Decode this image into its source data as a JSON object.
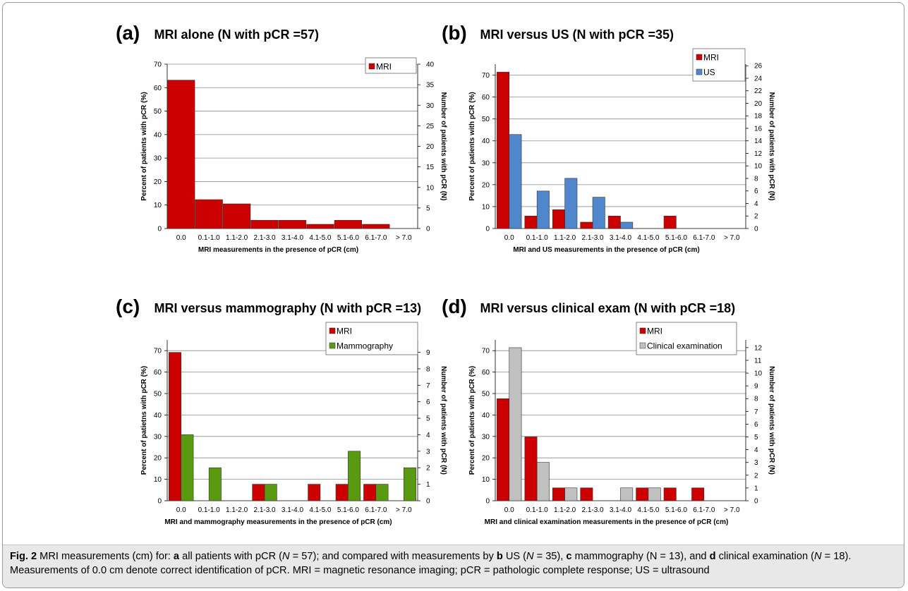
{
  "figure": {
    "caption_label": "Fig. 2",
    "caption_parts": [
      {
        "t": " MRI measurements (cm) for: ",
        "b": false
      },
      {
        "t": "a",
        "b": true
      },
      {
        "t": " all patients with pCR (",
        "b": false
      },
      {
        "t": "N",
        "b": false,
        "i": true
      },
      {
        "t": " = 57); and compared with measurements by ",
        "b": false
      },
      {
        "t": "b",
        "b": true
      },
      {
        "t": " US (",
        "b": false
      },
      {
        "t": "N",
        "b": false,
        "i": true
      },
      {
        "t": " = 35), ",
        "b": false
      },
      {
        "t": "c",
        "b": true
      },
      {
        "t": " mammography (N = 13), and ",
        "b": false
      },
      {
        "t": "d",
        "b": true
      },
      {
        "t": " clinical examination (",
        "b": false
      },
      {
        "t": "N",
        "b": false,
        "i": true
      },
      {
        "t": " = 18). Measurements of 0.0 cm denote correct identification of pCR. MRI = magnetic resonance imaging; pCR = pathologic complete response; US = ultrasound",
        "b": false
      }
    ]
  },
  "colors": {
    "MRI": "#cc0000",
    "US": "#4f86cc",
    "Mammography": "#5a9a10",
    "Clinical examination": "#c0c0c0"
  },
  "chart_data": [
    {
      "type": "bar",
      "panel_label": "(a)",
      "title": "MRI alone (N with pCR =57)",
      "categories": [
        "0.0",
        "0.1-1.0",
        "1.1-2.0",
        "2.1-3.0",
        "3.1-4.0",
        "4.1-5.0",
        "5.1-6.0",
        "6.1-7.0",
        "> 7.0"
      ],
      "series": [
        {
          "name": "MRI",
          "values": [
            63.2,
            12.3,
            10.5,
            3.5,
            3.5,
            1.8,
            3.5,
            1.8,
            0
          ]
        }
      ],
      "xlabel": "MRI measurements in the presence of pCR (cm)",
      "ylabel": "Percent of patients with pCR (%)",
      "y2label": "Number of patients with pCR (N)",
      "ylim": [
        0,
        70
      ],
      "y_ticks": [
        0,
        10,
        20,
        30,
        40,
        50,
        60,
        70
      ],
      "y2lim": [
        0,
        40
      ],
      "y2_ticks": [
        0,
        5,
        10,
        15,
        20,
        25,
        30,
        35,
        40
      ],
      "legend": "top-right",
      "grid": true
    },
    {
      "type": "bar",
      "panel_label": "(b)",
      "title": "MRI versus US (N with pCR =35)",
      "categories": [
        "0.0",
        "0.1-1.0",
        "1.1-2.0",
        "2.1-3.0",
        "3.1-4.0",
        "4.1-5.0",
        "5.1-6.0",
        "6.1-7.0",
        "> 7.0"
      ],
      "series": [
        {
          "name": "MRI",
          "values": [
            71.4,
            5.7,
            8.6,
            2.9,
            5.7,
            0,
            5.7,
            0,
            0
          ]
        },
        {
          "name": "US",
          "values": [
            42.9,
            17.1,
            22.9,
            14.3,
            2.9,
            0,
            0,
            0,
            0
          ]
        }
      ],
      "xlabel": "MRI and US measurements in the presence of pCR (cm)",
      "ylabel": "Percent of patients with pCR (%)",
      "y2label": "Number of patients with pCR (N)",
      "ylim": [
        0,
        75
      ],
      "y_ticks": [
        0,
        10,
        20,
        30,
        40,
        50,
        60,
        70
      ],
      "y2lim": [
        0,
        26.25
      ],
      "y2_ticks": [
        0,
        2,
        4,
        6,
        8,
        10,
        12,
        14,
        16,
        18,
        20,
        22,
        24,
        26
      ],
      "legend": "top-right",
      "grid": true
    },
    {
      "type": "bar",
      "panel_label": "(c)",
      "title": "MRI versus mammography (N with pCR =13)",
      "categories": [
        "0.0",
        "0.1-1.0",
        "1.1-2.0",
        "2.1-3.0",
        "3.1-4.0",
        "4.1-5.0",
        "5.1-6.0",
        "6.1-7.0",
        "> 7.0"
      ],
      "series": [
        {
          "name": "MRI",
          "values": [
            69.2,
            0,
            0,
            7.7,
            0,
            7.7,
            7.7,
            7.7,
            0
          ]
        },
        {
          "name": "Mammography",
          "values": [
            30.8,
            15.4,
            0,
            7.7,
            0,
            0,
            23.1,
            7.7,
            15.4
          ]
        }
      ],
      "xlabel": "MRI and mammography measurements in the presence of pCR (cm)",
      "ylabel": "Percent of patietns with pCR (%)",
      "y2label": "Number of patients with pCR (N)",
      "ylim": [
        0,
        75
      ],
      "y_ticks": [
        0,
        10,
        20,
        30,
        40,
        50,
        60,
        70
      ],
      "y2lim": [
        0,
        9.75
      ],
      "y2_ticks": [
        0,
        1,
        2,
        3,
        4,
        5,
        6,
        7,
        8,
        9
      ],
      "legend": "top-right",
      "grid": true
    },
    {
      "type": "bar",
      "panel_label": "(d)",
      "title": "MRI versus clinical exam (N with pCR =18)",
      "categories": [
        "0.0",
        "0.1-1.0",
        "1.1-2.0",
        "2.1-3.0",
        "3.1-4.0",
        "4.1-5.0",
        "5.1-6.0",
        "6.1-7.0",
        "> 7.0"
      ],
      "series": [
        {
          "name": "MRI",
          "values": [
            47.6,
            29.8,
            6.0,
            6.0,
            0,
            6.0,
            6.0,
            6.0,
            0
          ]
        },
        {
          "name": "Clinical examination",
          "values": [
            71.4,
            17.9,
            6.0,
            0,
            6.0,
            6.0,
            0,
            0,
            0
          ]
        }
      ],
      "xlabel": "MRI and clinical examination measurements in the presence of pCR (cm)",
      "ylabel": "Percent of patients with pCR (%)",
      "y2label": "Number of patients with pCR (N)",
      "ylim": [
        0,
        75
      ],
      "y_ticks": [
        0,
        10,
        20,
        30,
        40,
        50,
        60,
        70
      ],
      "y2lim": [
        0,
        12.6
      ],
      "y2_ticks": [
        0,
        1,
        2,
        3,
        4,
        5,
        6,
        7,
        8,
        9,
        10,
        11,
        12
      ],
      "legend": "top-right",
      "grid": true
    }
  ]
}
